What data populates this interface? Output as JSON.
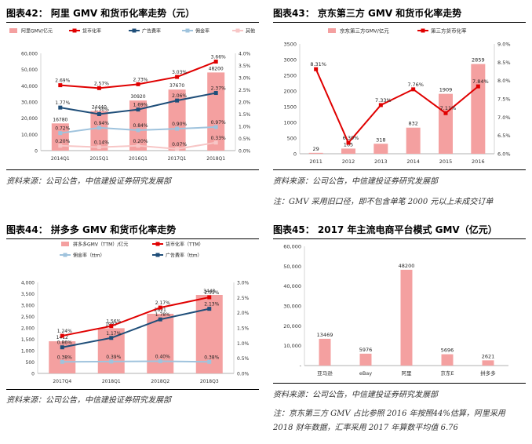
{
  "colors": {
    "bar": "#f4a0a0",
    "red": "#e00000",
    "navy": "#1f4e79",
    "lightblue": "#9fc3dd",
    "pink": "#f7c6c6",
    "text": "#333333"
  },
  "panels": [
    {
      "title": "图表42：  阿里  GMV 和货币化率走势（元）",
      "source": "资料来源：公司公告，中信建投证券研究发展部",
      "note": ""
    },
    {
      "title": "图表43：  京东第三方  GMV 和货币化率走势",
      "source": "资料来源：公司公告，中信建投证券研究发展部",
      "note": "注：GMV 采用旧口径，即不包含单笔 2000 元以上未成交订单"
    },
    {
      "title": "图表44：  拼多多  GMV 和货币化率走势",
      "source": "资料来源：公司公告，中信建投证券研究发展部",
      "note": ""
    },
    {
      "title": "图表45：  2017 年主流电商平台模式 GMV（亿元）",
      "source": "资料来源：公司公告，中信建投证券研究发展部",
      "note": "注：京东第三方 GMV 占比参照 2016 年按照44%估算，阿里采用 2018 财年数据，汇率采用 2017 年算数平均值 6.76"
    }
  ],
  "chart_data": [
    {
      "type": "bar",
      "categories": [
        "2014Q1",
        "2015Q1",
        "2016Q1",
        "2017Q1",
        "2018Q1"
      ],
      "bars": {
        "name": "阿里GMV/亿元",
        "values": [
          16780,
          24440,
          30920,
          37670,
          48200
        ],
        "labels": [
          "16780",
          "24440",
          "30920",
          "37670",
          "48200"
        ]
      },
      "lines": [
        {
          "name": "货币化率",
          "color": "#e00000",
          "values": [
            2.69,
            2.57,
            2.73,
            3.03,
            3.66
          ],
          "labels": [
            "2.69%",
            "2.57%",
            "2.73%",
            "3.03%",
            "3.66%"
          ]
        },
        {
          "name": "广告费率",
          "color": "#1f4e79",
          "values": [
            1.77,
            1.5,
            1.69,
            2.06,
            2.37
          ],
          "labels": [
            "1.77%",
            "1.50%",
            "1.69%",
            "2.06%",
            "2.37%"
          ]
        },
        {
          "name": "佣金率",
          "color": "#9fc3dd",
          "values": [
            0.72,
            0.94,
            0.84,
            0.9,
            0.97
          ],
          "labels": [
            "0.72%",
            "0.94%",
            "0.84%",
            "0.90%",
            "0.97%"
          ]
        },
        {
          "name": "其他",
          "color": "#f7c6c6",
          "values": [
            0.2,
            0.14,
            0.2,
            0.07,
            0.33
          ],
          "labels": [
            "0.20%",
            "0.14%",
            "0.20%",
            "0.07%",
            "0.33%"
          ]
        }
      ],
      "left_axis": {
        "min": 0,
        "max": 60000,
        "ticks": [
          "0",
          "10,000",
          "20,000",
          "30,000",
          "40,000",
          "50,000",
          "60,000"
        ]
      },
      "right_axis": {
        "min": 0,
        "max": 4,
        "ticks": [
          "0.0%",
          "0.5%",
          "1.0%",
          "1.5%",
          "2.0%",
          "2.5%",
          "3.0%",
          "3.5%",
          "4.0%"
        ]
      }
    },
    {
      "type": "bar",
      "categories": [
        "2011",
        "2012",
        "2013",
        "2014",
        "2015",
        "2016"
      ],
      "bars": {
        "name": "京东第三方GMV/亿元",
        "values": [
          29,
          165,
          318,
          832,
          1909,
          2859
        ],
        "labels": [
          "29",
          "165",
          "318",
          "832",
          "1909",
          "2859"
        ]
      },
      "lines": [
        {
          "name": "第三方货币化率",
          "color": "#e00000",
          "values": [
            8.31,
            6.3,
            7.33,
            7.76,
            7.11,
            7.84
          ],
          "labels": [
            "8.31%",
            "6.30%",
            "7.33%",
            "7.76%",
            "7.11%",
            "7.84%"
          ]
        }
      ],
      "left_axis": {
        "min": 0,
        "max": 3500,
        "ticks": [
          "0",
          "500",
          "1000",
          "1500",
          "2000",
          "2500",
          "3000",
          "3500"
        ]
      },
      "right_axis": {
        "min": 6,
        "max": 9,
        "ticks": [
          "6.0%",
          "6.5%",
          "7.0%",
          "7.5%",
          "8.0%",
          "8.5%",
          "9.0%"
        ]
      }
    },
    {
      "type": "bar",
      "categories": [
        "2017Q4",
        "2018Q1",
        "2018Q2",
        "2018Q3"
      ],
      "bars": {
        "name": "拼多多GMV（TTM）/亿元",
        "values": [
          1412,
          1987,
          2621,
          3448
        ],
        "labels": [
          "1412",
          "1987",
          "2621",
          "3448"
        ]
      },
      "lines": [
        {
          "name": "货币化率（TTM）",
          "color": "#e00000",
          "values": [
            1.24,
            1.56,
            2.17,
            2.51
          ],
          "labels": [
            "1.24%",
            "1.56%",
            "2.17%",
            "2.51%"
          ]
        },
        {
          "name": "佣金率（ttm）",
          "color": "#9fc3dd",
          "values": [
            0.38,
            0.39,
            0.4,
            0.38
          ],
          "labels": [
            "0.38%",
            "0.39%",
            "0.40%",
            "0.38%"
          ]
        },
        {
          "name": "广告费率（ttm）",
          "color": "#1f4e79",
          "values": [
            0.86,
            1.17,
            1.78,
            2.13
          ],
          "labels": [
            "0.86%",
            "1.17%",
            "1.78%",
            "2.13%"
          ]
        }
      ],
      "left_axis": {
        "min": 0,
        "max": 4000,
        "ticks": [
          "0",
          "500",
          "1,000",
          "1,500",
          "2,000",
          "2,500",
          "3,000",
          "3,500",
          "4,000"
        ]
      },
      "right_axis": {
        "min": 0,
        "max": 3,
        "ticks": [
          "0.0%",
          "0.5%",
          "1.0%",
          "1.5%",
          "2.0%",
          "2.5%",
          "3.0%"
        ]
      }
    },
    {
      "type": "bar",
      "categories": [
        "亚马逊",
        "eBay",
        "阿里",
        "京东E",
        "拼多多"
      ],
      "bars": {
        "name": "",
        "values": [
          13469,
          5976,
          48200,
          5696,
          2621
        ],
        "labels": [
          "13469",
          "5976",
          "48200",
          "5696",
          "2621"
        ]
      },
      "lines": [],
      "left_axis": {
        "min": 0,
        "max": 60000,
        "ticks": [
          "-",
          "10,000",
          "20,000",
          "30,000",
          "40,000",
          "50,000",
          "60,000"
        ]
      },
      "right_axis": null
    }
  ]
}
